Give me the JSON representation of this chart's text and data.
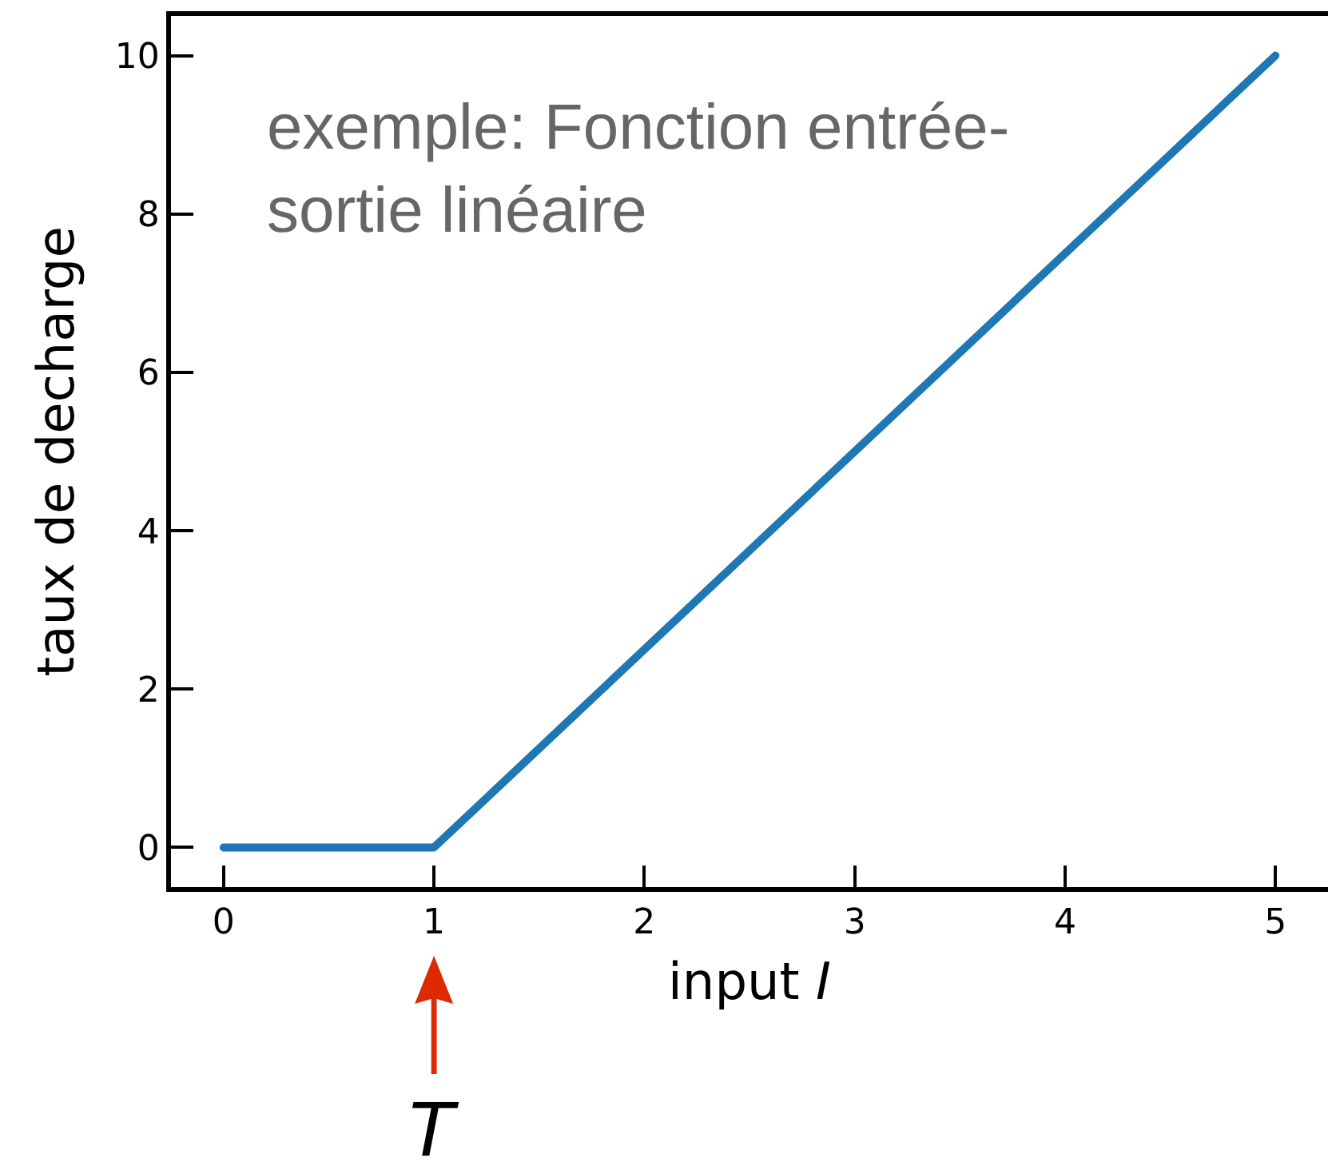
{
  "chart_data": {
    "type": "line",
    "xlabel": "input I",
    "ylabel": "taux de decharge",
    "annotations": [
      "exemple: Fonction entrée-\nsortie linéaire",
      "T"
    ],
    "x": [
      0,
      1,
      5
    ],
    "series": [
      {
        "color": "#1f77b4",
        "values": [
          0,
          0,
          10
        ]
      }
    ],
    "xlim": [
      -0.25,
      5.25
    ],
    "ylim": [
      -0.5,
      10.5
    ],
    "xticks": [
      0,
      1,
      2,
      3,
      4,
      5
    ],
    "yticks": [
      0,
      2,
      4,
      6,
      8,
      10
    ],
    "marker": "none",
    "line_style": "solid"
  }
}
